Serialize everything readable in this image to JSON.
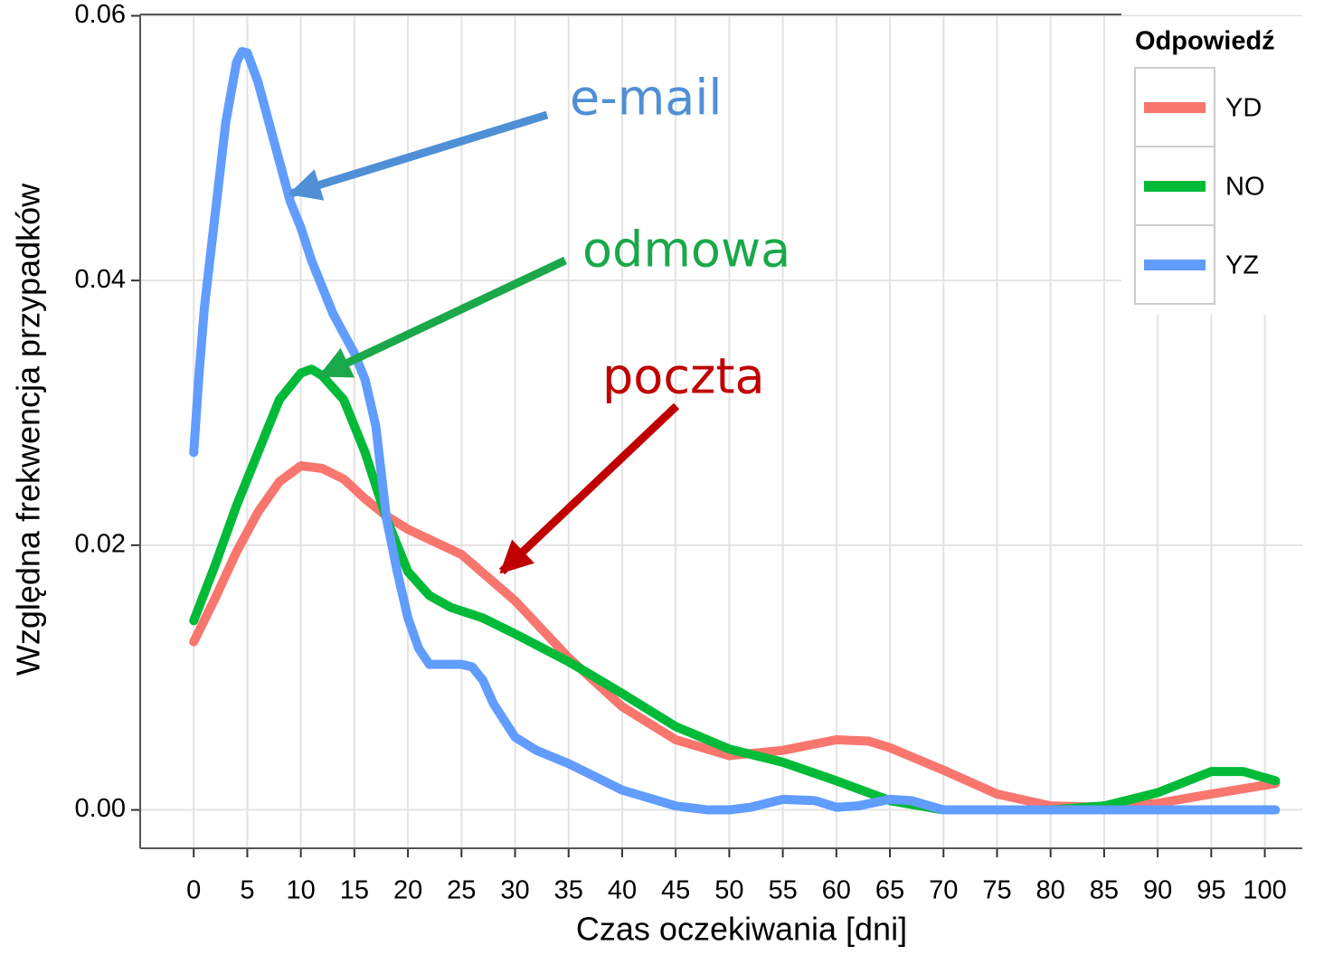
{
  "chart_data": {
    "type": "line",
    "xlabel": "Czas oczekiwania [dni]",
    "ylabel": "Względna frekwencja przypadków",
    "xlim": [
      -5,
      103.5
    ],
    "ylim": [
      -0.0029,
      0.0601
    ],
    "xticks": [
      0,
      5,
      10,
      15,
      20,
      25,
      30,
      35,
      40,
      45,
      50,
      55,
      60,
      65,
      70,
      75,
      80,
      85,
      90,
      95,
      100
    ],
    "yticks": [
      {
        "value": 0,
        "label": "0.00"
      },
      {
        "value": 0.02,
        "label": "0.02"
      },
      {
        "value": 0.04,
        "label": "0.04"
      },
      {
        "value": 0.06,
        "label": "0.06"
      }
    ],
    "grid": true,
    "legend": {
      "title": "Odpowiedź",
      "position": "top-right"
    },
    "series": [
      {
        "name": "YD",
        "color": "#f8766d",
        "x": [
          0,
          2,
          4,
          6,
          8,
          10,
          12,
          14,
          16,
          18,
          20,
          25,
          30,
          35,
          40,
          45,
          50,
          55,
          60,
          63,
          65,
          70,
          75,
          80,
          85,
          90,
          95,
          101
        ],
        "values": [
          0.0127,
          0.016,
          0.0195,
          0.0225,
          0.0248,
          0.026,
          0.0258,
          0.025,
          0.0235,
          0.0222,
          0.0212,
          0.0193,
          0.0158,
          0.0115,
          0.0078,
          0.0053,
          0.0041,
          0.0045,
          0.0053,
          0.0052,
          0.0047,
          0.003,
          0.0012,
          0.0003,
          0.0002,
          0.0005,
          0.0012,
          0.002
        ]
      },
      {
        "name": "NO",
        "color": "#00ba38",
        "x": [
          0,
          2,
          4,
          6,
          8,
          10,
          11,
          12,
          14,
          16,
          18,
          20,
          22,
          24,
          27,
          30,
          35,
          40,
          45,
          50,
          55,
          60,
          65,
          70,
          80,
          85,
          90,
          95,
          98,
          101
        ],
        "values": [
          0.0143,
          0.0185,
          0.023,
          0.027,
          0.031,
          0.033,
          0.0333,
          0.0328,
          0.031,
          0.027,
          0.022,
          0.018,
          0.0162,
          0.0153,
          0.0145,
          0.0133,
          0.0112,
          0.0088,
          0.0063,
          0.0046,
          0.0036,
          0.0022,
          0.0007,
          0,
          0,
          0.0003,
          0.0013,
          0.0029,
          0.0029,
          0.0022
        ]
      },
      {
        "name": "YZ",
        "color": "#619cff",
        "x": [
          0,
          0.5,
          1,
          2,
          3,
          4,
          4.5,
          5,
          6,
          7,
          8,
          9,
          10,
          11,
          12,
          13,
          14,
          15,
          16,
          17,
          18,
          19,
          20,
          21,
          22,
          23,
          25,
          26,
          27,
          28,
          30,
          32,
          35,
          40,
          45,
          48,
          50,
          52,
          55,
          58,
          60,
          62,
          65,
          67,
          70,
          101
        ],
        "values": [
          0.027,
          0.033,
          0.038,
          0.045,
          0.052,
          0.0565,
          0.0573,
          0.0572,
          0.055,
          0.052,
          0.049,
          0.046,
          0.044,
          0.0415,
          0.0395,
          0.0375,
          0.036,
          0.0345,
          0.0325,
          0.029,
          0.022,
          0.018,
          0.0145,
          0.0122,
          0.011,
          0.011,
          0.011,
          0.0108,
          0.0098,
          0.008,
          0.0055,
          0.0045,
          0.0035,
          0.0015,
          0.0003,
          0,
          0,
          0.0002,
          0.0008,
          0.0007,
          0.0002,
          0.0003,
          0.0008,
          0.0007,
          0,
          0
        ]
      }
    ],
    "annotations": [
      {
        "text": "e-mail",
        "color": "#4f8fd6"
      },
      {
        "text": "odmowa",
        "color": "#1aa84a"
      },
      {
        "text": "poczta",
        "color": "#c00000"
      }
    ]
  }
}
